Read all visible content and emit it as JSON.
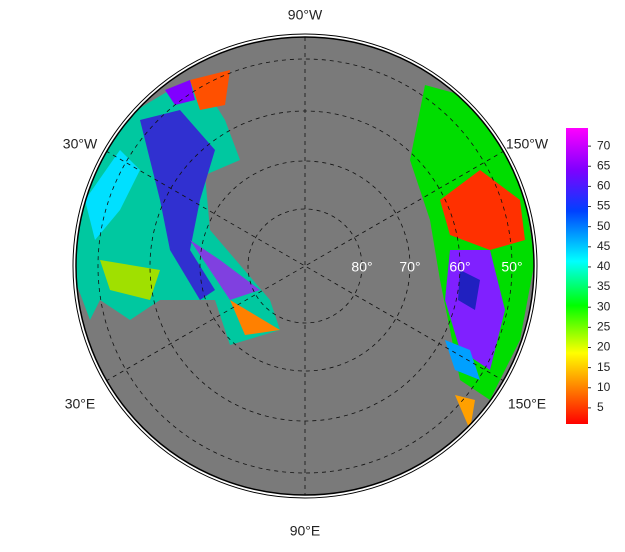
{
  "map": {
    "lon_labels": {
      "top": "90°W",
      "upper_left": "30°W",
      "upper_right": "150°W",
      "lower_left": "30°E",
      "lower_right": "150°E",
      "bottom": "90°E"
    },
    "lat_labels": [
      "80°",
      "70°",
      "60°",
      "50°"
    ],
    "colorbar": {
      "range": [
        1,
        74.5
      ],
      "ticks": [
        5,
        10,
        15,
        20,
        25,
        30,
        35,
        40,
        45,
        50,
        55,
        60,
        65,
        70
      ]
    }
  }
}
